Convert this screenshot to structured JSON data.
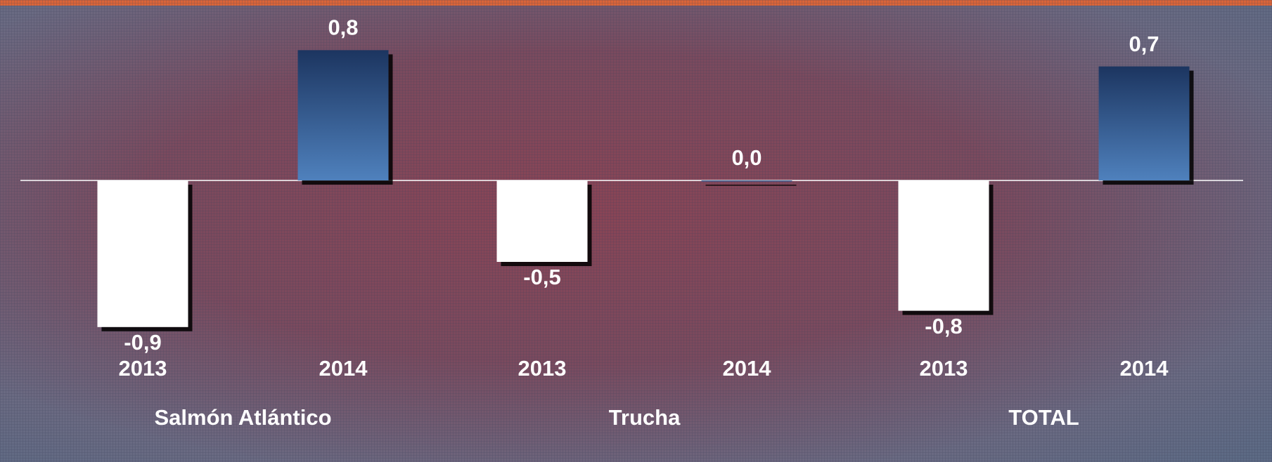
{
  "chart_data": {
    "type": "bar",
    "categories": [
      "2013",
      "2014",
      "2013",
      "2014",
      "2013",
      "2014"
    ],
    "groups": [
      "Salmón Atlántico",
      "Trucha",
      "TOTAL"
    ],
    "values": [
      -0.9,
      0.8,
      -0.5,
      0.0,
      -0.8,
      0.7
    ],
    "value_labels": [
      "-0,9",
      "0,8",
      "-0,5",
      "0,0",
      "-0,8",
      "0,7"
    ],
    "colors": [
      "#ffffff",
      "#4f81bd",
      "#ffffff",
      "#4f81bd",
      "#ffffff",
      "#4f81bd"
    ]
  }
}
